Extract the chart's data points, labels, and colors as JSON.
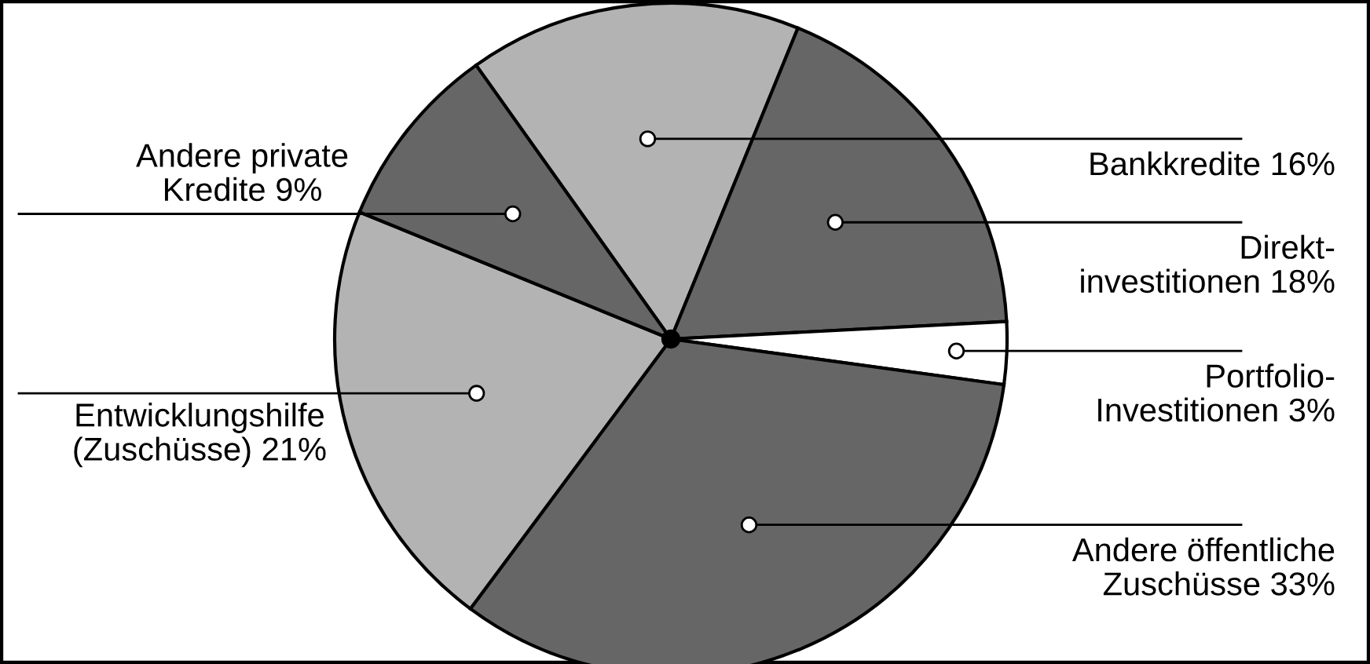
{
  "chart_data": {
    "type": "pie",
    "categories": [
      "Bankkredite",
      "Direkt-\ninvestitionen",
      "Portfolio-\nInvestitionen",
      "Andere öffentliche\nZuschüsse",
      "Entwicklungshilfe\n(Zuschüsse)",
      "Andere private\nKredite"
    ],
    "values": [
      16,
      18,
      3,
      33,
      21,
      9
    ],
    "value_labels": [
      "16%",
      "18%",
      "3%",
      "33%",
      "21%",
      "9%"
    ],
    "colors": [
      "#b3b3b3",
      "#666666",
      "#ffffff",
      "#666666",
      "#b3b3b3",
      "#666666"
    ],
    "legend": false
  }
}
